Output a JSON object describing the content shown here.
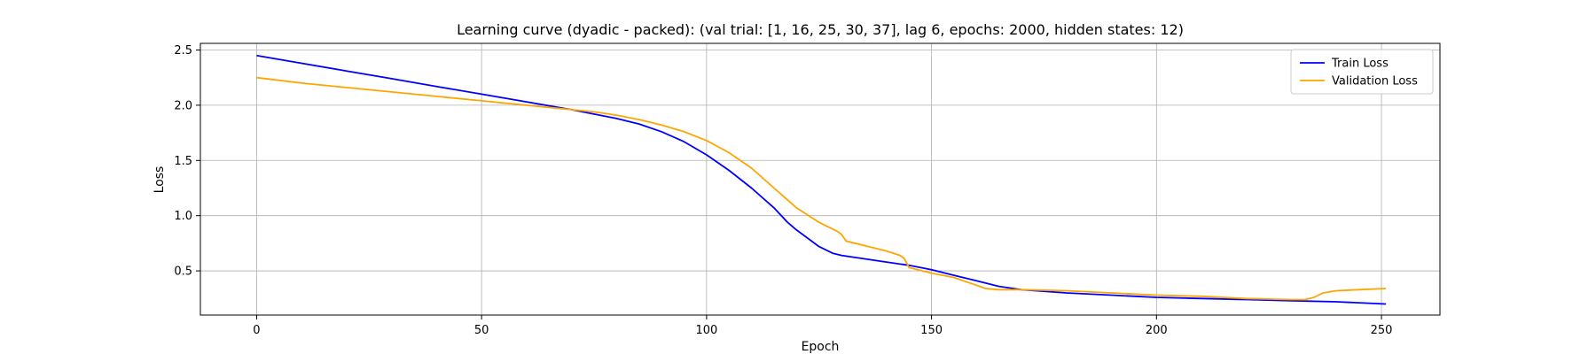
{
  "chart_data": {
    "type": "line",
    "title": "Learning curve (dyadic - packed): (val trial: [1, 16, 25, 30, 37], lag 6, epochs: 2000, hidden states: 12)",
    "xlabel": "Epoch",
    "ylabel": "Loss",
    "xlim": [
      -12.5,
      263
    ],
    "ylim": [
      0.1,
      2.56
    ],
    "xticks": [
      0,
      50,
      100,
      150,
      200,
      250
    ],
    "yticks": [
      0.5,
      1.0,
      1.5,
      2.0,
      2.5
    ],
    "xtick_labels": [
      "0",
      "50",
      "100",
      "150",
      "200",
      "250"
    ],
    "ytick_labels": [
      "0.5",
      "1.0",
      "1.5",
      "2.0",
      "2.5"
    ],
    "grid": true,
    "legend_position": "top-right",
    "series": [
      {
        "name": "Train Loss",
        "color": "#0000ff",
        "x": [
          0,
          10,
          20,
          30,
          40,
          50,
          60,
          70,
          75,
          80,
          85,
          90,
          95,
          100,
          105,
          110,
          115,
          118,
          120,
          123,
          125,
          128,
          130,
          135,
          140,
          145,
          150,
          155,
          160,
          165,
          170,
          180,
          190,
          200,
          210,
          220,
          230,
          240,
          251
        ],
        "y": [
          2.45,
          2.38,
          2.31,
          2.24,
          2.17,
          2.1,
          2.03,
          1.96,
          1.92,
          1.88,
          1.83,
          1.76,
          1.67,
          1.55,
          1.41,
          1.25,
          1.07,
          0.94,
          0.87,
          0.78,
          0.72,
          0.66,
          0.64,
          0.61,
          0.58,
          0.55,
          0.51,
          0.46,
          0.41,
          0.36,
          0.33,
          0.3,
          0.28,
          0.26,
          0.25,
          0.24,
          0.23,
          0.22,
          0.2
        ]
      },
      {
        "name": "Validation Loss",
        "color": "#ffa500",
        "x": [
          0,
          10,
          20,
          30,
          40,
          50,
          60,
          70,
          75,
          80,
          85,
          90,
          95,
          100,
          105,
          110,
          115,
          120,
          125,
          129,
          130,
          131,
          135,
          140,
          143,
          144,
          145,
          150,
          155,
          160,
          162,
          165,
          170,
          180,
          190,
          200,
          210,
          220,
          230,
          233,
          235,
          237,
          240,
          245,
          251
        ],
        "y": [
          2.25,
          2.2,
          2.16,
          2.12,
          2.08,
          2.04,
          2.0,
          1.96,
          1.94,
          1.91,
          1.87,
          1.82,
          1.76,
          1.68,
          1.57,
          1.43,
          1.25,
          1.07,
          0.94,
          0.86,
          0.83,
          0.77,
          0.73,
          0.68,
          0.64,
          0.61,
          0.53,
          0.48,
          0.44,
          0.37,
          0.34,
          0.33,
          0.33,
          0.32,
          0.3,
          0.28,
          0.27,
          0.25,
          0.24,
          0.24,
          0.26,
          0.3,
          0.32,
          0.33,
          0.34
        ]
      }
    ]
  }
}
